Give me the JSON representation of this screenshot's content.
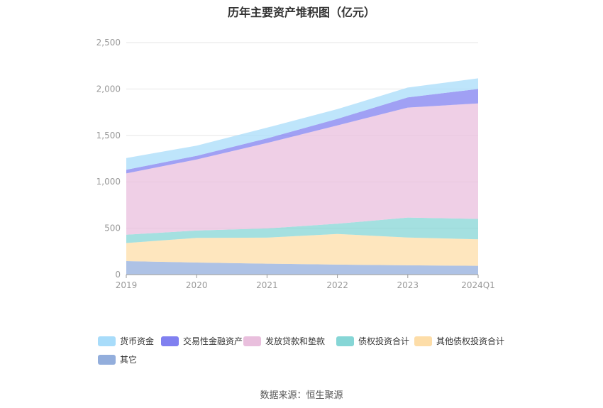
{
  "chart_data": {
    "type": "area",
    "title": "历年主要资产堆积图（亿元）",
    "categories": [
      "2019",
      "2020",
      "2021",
      "2022",
      "2023",
      "2024Q1"
    ],
    "ylim": [
      0,
      2500
    ],
    "yticks": [
      0,
      500,
      1000,
      1500,
      2000,
      2500
    ],
    "ytick_labels": [
      "0",
      "500",
      "1,000",
      "1,500",
      "2,000",
      "2,500"
    ],
    "stacked": true,
    "grid": true,
    "legend_position": "bottom-left",
    "series": [
      {
        "name": "其它",
        "color": "#93aedc",
        "values": [
          145,
          130,
          118,
          108,
          100,
          95
        ]
      },
      {
        "name": "其他债权投资合计",
        "color": "#fddda8",
        "values": [
          195,
          265,
          280,
          330,
          300,
          285
        ]
      },
      {
        "name": "债权投资合计",
        "color": "#86d6d6",
        "values": [
          90,
          80,
          100,
          110,
          215,
          220
        ]
      },
      {
        "name": "发放贷款和垫款",
        "color": "#e9bfdd",
        "values": [
          660,
          765,
          920,
          1060,
          1185,
          1245
        ]
      },
      {
        "name": "交易性金融资产",
        "color": "#8080f0",
        "values": [
          40,
          40,
          50,
          70,
          110,
          155
        ]
      },
      {
        "name": "货币资金",
        "color": "#a8dcfa",
        "values": [
          125,
          110,
          115,
          105,
          105,
          115
        ]
      }
    ],
    "source": "数据来源：恒生聚源"
  }
}
